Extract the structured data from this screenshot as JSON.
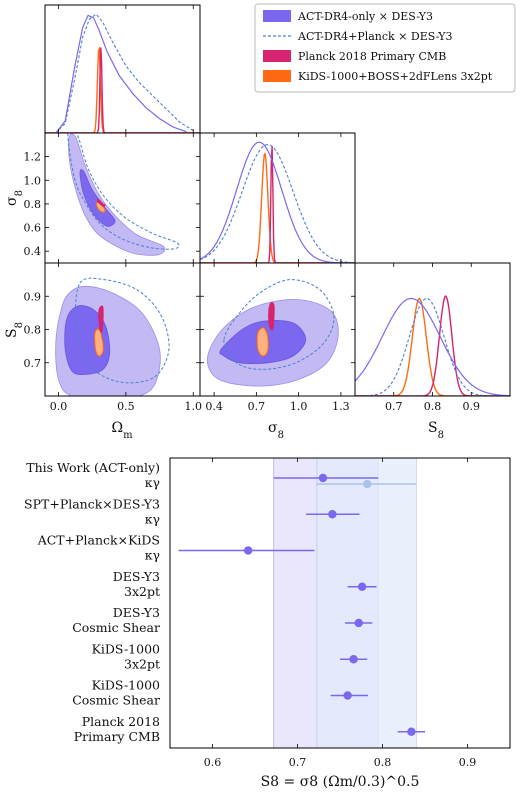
{
  "colors": {
    "act_only": "#7b68ee",
    "act_planck": "#4a7fd4",
    "planck": "#d6246e",
    "kids": "#ff6a13",
    "band_inner": "#c8c0f4",
    "band_outer": "#e6e2fb",
    "band_light": "#e8eefb",
    "ghost": "#aac4e8"
  },
  "legend": {
    "items": [
      {
        "label": "ACT-DR4-only × DES-Y3",
        "style": "patch",
        "color": "#7b68ee"
      },
      {
        "label": "ACT-DR4+Planck × DES-Y3",
        "style": "dashed",
        "color": "#4a7fd4"
      },
      {
        "label": "Planck 2018 Primary CMB",
        "style": "patch",
        "color": "#d6246e"
      },
      {
        "label": "KiDS-1000+BOSS+2dFLens 3x2pt",
        "style": "patch",
        "color": "#ff6a13"
      }
    ]
  },
  "chart_data": [
    {
      "type": "corner",
      "parameters": [
        "Ωm",
        "σ8",
        "S8"
      ],
      "axis_labels": {
        "omega_m": "Ωm",
        "sigma8": "σ8",
        "s8": "S8"
      },
      "ranges": {
        "omega_m": [
          -0.1,
          1.05
        ],
        "sigma8": [
          0.3,
          1.4
        ],
        "s8": [
          0.6,
          1.0
        ]
      },
      "ticks": {
        "omega_m": [
          "0.0",
          "0.5",
          "1.0"
        ],
        "sigma8_y": [
          "0.4",
          "0.6",
          "0.8",
          "1.0",
          "1.2"
        ],
        "sigma8_x": [
          "0.4",
          "0.7",
          "1.0",
          "1.3"
        ],
        "s8_y": [
          "0.7",
          "0.8",
          "0.9"
        ],
        "s8_x": [
          "0.6",
          "0.7",
          "0.8",
          "0.9"
        ]
      },
      "marginals": {
        "omega_m": {
          "act_only": [
            [
              -0.02,
              0
            ],
            [
              0.05,
              0.1
            ],
            [
              0.12,
              0.55
            ],
            [
              0.18,
              0.88
            ],
            [
              0.22,
              0.98
            ],
            [
              0.26,
              0.96
            ],
            [
              0.3,
              0.86
            ],
            [
              0.36,
              0.68
            ],
            [
              0.45,
              0.48
            ],
            [
              0.55,
              0.33
            ],
            [
              0.65,
              0.21
            ],
            [
              0.75,
              0.12
            ],
            [
              0.85,
              0.05
            ],
            [
              0.95,
              0.01
            ]
          ],
          "act_planck": [
            [
              -0.02,
              0
            ],
            [
              0.05,
              0.08
            ],
            [
              0.12,
              0.45
            ],
            [
              0.18,
              0.8
            ],
            [
              0.23,
              0.95
            ],
            [
              0.28,
              0.99
            ],
            [
              0.33,
              0.92
            ],
            [
              0.4,
              0.76
            ],
            [
              0.5,
              0.56
            ],
            [
              0.6,
              0.42
            ],
            [
              0.7,
              0.31
            ],
            [
              0.8,
              0.2
            ],
            [
              0.9,
              0.09
            ],
            [
              1.0,
              0.02
            ]
          ],
          "planck": {
            "center": 0.315,
            "sigma": 0.0075,
            "peak": 0.72
          },
          "kids": {
            "center": 0.3,
            "sigma": 0.011,
            "peak": 0.72
          }
        },
        "sigma8": {
          "act_only": {
            "center": 0.72,
            "sigma": 0.16,
            "peak": 0.99
          },
          "act_planck": {
            "center": 0.78,
            "sigma": 0.18,
            "peak": 0.97
          },
          "planck": {
            "center": 0.81,
            "sigma": 0.007,
            "peak": 0.98
          },
          "kids": {
            "center": 0.76,
            "sigma": 0.022,
            "peak": 0.9
          }
        },
        "s8": {
          "act_only": {
            "center": 0.745,
            "sigma": 0.075,
            "peak": 0.78
          },
          "act_planck": {
            "center": 0.785,
            "sigma": 0.045,
            "peak": 0.78
          },
          "planck": {
            "center": 0.834,
            "sigma": 0.016,
            "peak": 0.8
          },
          "kids": {
            "center": 0.766,
            "sigma": 0.018,
            "peak": 0.78
          }
        }
      },
      "contours_2d": {
        "sigma8_vs_omega_m": {
          "act_outer": [
            [
              0.08,
              1.37
            ],
            [
              0.13,
              1.36
            ],
            [
              0.2,
              1.12
            ],
            [
              0.3,
              0.88
            ],
            [
              0.42,
              0.7
            ],
            [
              0.58,
              0.54
            ],
            [
              0.78,
              0.44
            ],
            [
              0.74,
              0.37
            ],
            [
              0.56,
              0.38
            ],
            [
              0.4,
              0.46
            ],
            [
              0.28,
              0.56
            ],
            [
              0.19,
              0.72
            ],
            [
              0.12,
              0.95
            ],
            [
              0.08,
              1.18
            ]
          ],
          "act_inner": [
            [
              0.16,
              1.07
            ],
            [
              0.19,
              1.07
            ],
            [
              0.25,
              0.92
            ],
            [
              0.35,
              0.76
            ],
            [
              0.42,
              0.66
            ],
            [
              0.37,
              0.61
            ],
            [
              0.3,
              0.66
            ],
            [
              0.23,
              0.77
            ],
            [
              0.18,
              0.91
            ]
          ],
          "act_planck_outer": [
            [
              0.07,
              1.4
            ],
            [
              0.14,
              1.38
            ],
            [
              0.22,
              1.1
            ],
            [
              0.34,
              0.86
            ],
            [
              0.5,
              0.68
            ],
            [
              0.7,
              0.55
            ],
            [
              0.88,
              0.47
            ],
            [
              0.86,
              0.42
            ],
            [
              0.68,
              0.43
            ],
            [
              0.48,
              0.5
            ],
            [
              0.32,
              0.62
            ],
            [
              0.21,
              0.79
            ],
            [
              0.12,
              1.01
            ]
          ],
          "planck": [
            [
              0.29,
              0.83
            ],
            [
              0.3,
              0.835
            ],
            [
              0.33,
              0.8
            ],
            [
              0.345,
              0.79
            ],
            [
              0.335,
              0.78
            ],
            [
              0.31,
              0.8
            ]
          ],
          "kids": [
            [
              0.28,
              0.8
            ],
            [
              0.3,
              0.81
            ],
            [
              0.33,
              0.78
            ],
            [
              0.345,
              0.74
            ],
            [
              0.33,
              0.73
            ],
            [
              0.3,
              0.75
            ]
          ]
        },
        "s8_vs_omega_m": {
          "act_outer": [
            [
              0.02,
              0.86
            ],
            [
              0.08,
              0.91
            ],
            [
              0.2,
              0.93
            ],
            [
              0.4,
              0.91
            ],
            [
              0.62,
              0.85
            ],
            [
              0.75,
              0.74
            ],
            [
              0.72,
              0.64
            ],
            [
              0.6,
              0.6
            ],
            [
              0.4,
              0.6
            ],
            [
              0.1,
              0.6
            ],
            [
              0.0,
              0.65
            ],
            [
              -0.02,
              0.76
            ]
          ],
          "act_inner": [
            [
              0.06,
              0.83
            ],
            [
              0.14,
              0.87
            ],
            [
              0.26,
              0.86
            ],
            [
              0.35,
              0.81
            ],
            [
              0.38,
              0.73
            ],
            [
              0.33,
              0.68
            ],
            [
              0.2,
              0.665
            ],
            [
              0.1,
              0.675
            ],
            [
              0.05,
              0.74
            ]
          ],
          "act_planck_outer": [
            [
              0.16,
              0.94
            ],
            [
              0.34,
              0.95
            ],
            [
              0.58,
              0.92
            ],
            [
              0.75,
              0.85
            ],
            [
              0.82,
              0.76
            ],
            [
              0.78,
              0.69
            ],
            [
              0.68,
              0.65
            ],
            [
              0.5,
              0.64
            ],
            [
              0.33,
              0.66
            ],
            [
              0.2,
              0.71
            ],
            [
              0.13,
              0.82
            ]
          ],
          "planck": [
            [
              0.3,
              0.855
            ],
            [
              0.32,
              0.87
            ],
            [
              0.33,
              0.86
            ],
            [
              0.325,
              0.8
            ],
            [
              0.315,
              0.795
            ],
            [
              0.305,
              0.81
            ]
          ],
          "kids": [
            [
              0.27,
              0.79
            ],
            [
              0.3,
              0.8
            ],
            [
              0.325,
              0.77
            ],
            [
              0.33,
              0.735
            ],
            [
              0.3,
              0.72
            ],
            [
              0.275,
              0.74
            ]
          ]
        },
        "s8_vs_sigma8": {
          "act_outer": [
            [
              0.36,
              0.73
            ],
            [
              0.48,
              0.81
            ],
            [
              0.7,
              0.87
            ],
            [
              1.0,
              0.89
            ],
            [
              1.23,
              0.855
            ],
            [
              1.28,
              0.78
            ],
            [
              1.2,
              0.7
            ],
            [
              1.0,
              0.65
            ],
            [
              0.75,
              0.63
            ],
            [
              0.5,
              0.64
            ],
            [
              0.38,
              0.67
            ]
          ],
          "act_inner": [
            [
              0.45,
              0.74
            ],
            [
              0.6,
              0.8
            ],
            [
              0.75,
              0.825
            ],
            [
              0.96,
              0.82
            ],
            [
              1.05,
              0.77
            ],
            [
              0.96,
              0.72
            ],
            [
              0.78,
              0.7
            ],
            [
              0.58,
              0.7
            ],
            [
              0.47,
              0.72
            ]
          ],
          "act_planck_outer": [
            [
              0.47,
              0.77
            ],
            [
              0.6,
              0.86
            ],
            [
              0.76,
              0.92
            ],
            [
              0.95,
              0.95
            ],
            [
              1.15,
              0.92
            ],
            [
              1.25,
              0.84
            ],
            [
              1.18,
              0.76
            ],
            [
              0.98,
              0.7
            ],
            [
              0.74,
              0.68
            ],
            [
              0.56,
              0.7
            ]
          ],
          "planck": [
            [
              0.79,
              0.86
            ],
            [
              0.805,
              0.88
            ],
            [
              0.825,
              0.87
            ],
            [
              0.82,
              0.81
            ],
            [
              0.805,
              0.8
            ],
            [
              0.79,
              0.82
            ]
          ],
          "kids": [
            [
              0.71,
              0.79
            ],
            [
              0.75,
              0.805
            ],
            [
              0.78,
              0.78
            ],
            [
              0.78,
              0.735
            ],
            [
              0.745,
              0.72
            ],
            [
              0.71,
              0.74
            ]
          ]
        }
      }
    },
    {
      "type": "errorbar",
      "x_label": "S8 = σ8 (Ωm/0.3)^0.5",
      "xlim": [
        0.55,
        0.95
      ],
      "x_ticks": [
        "0.6",
        "0.7",
        "0.8",
        "0.9"
      ],
      "bands": [
        {
          "x0": 0.672,
          "x1": 0.795,
          "name": "outer"
        },
        {
          "x0": 0.723,
          "x1": 0.795,
          "name": "inner"
        },
        {
          "x0": 0.723,
          "x1": 0.84,
          "name": "light"
        }
      ],
      "entries": [
        {
          "lines": [
            "This Work (ACT-only)",
            "κγ"
          ],
          "value": 0.73,
          "lo": 0.672,
          "hi": 0.795
        },
        {
          "lines": [
            "SPT+Planck×DES-Y3",
            "κγ"
          ],
          "value": 0.741,
          "lo": 0.71,
          "hi": 0.773
        },
        {
          "lines": [
            "ACT+Planck×KiDS",
            "κγ"
          ],
          "value": 0.642,
          "lo": 0.56,
          "hi": 0.72
        },
        {
          "lines": [
            "DES-Y3",
            "3x2pt"
          ],
          "value": 0.776,
          "lo": 0.759,
          "hi": 0.793
        },
        {
          "lines": [
            "DES-Y3",
            "Cosmic Shear"
          ],
          "value": 0.772,
          "lo": 0.756,
          "hi": 0.788
        },
        {
          "lines": [
            "KiDS-1000",
            "3x2pt"
          ],
          "value": 0.766,
          "lo": 0.75,
          "hi": 0.782
        },
        {
          "lines": [
            "KiDS-1000",
            "Cosmic Shear"
          ],
          "value": 0.759,
          "lo": 0.739,
          "hi": 0.783
        },
        {
          "lines": [
            "Planck 2018",
            "Primary CMB"
          ],
          "value": 0.834,
          "lo": 0.818,
          "hi": 0.85
        }
      ],
      "ghost": {
        "value": 0.782,
        "lo": 0.722,
        "hi": 0.84
      }
    }
  ]
}
